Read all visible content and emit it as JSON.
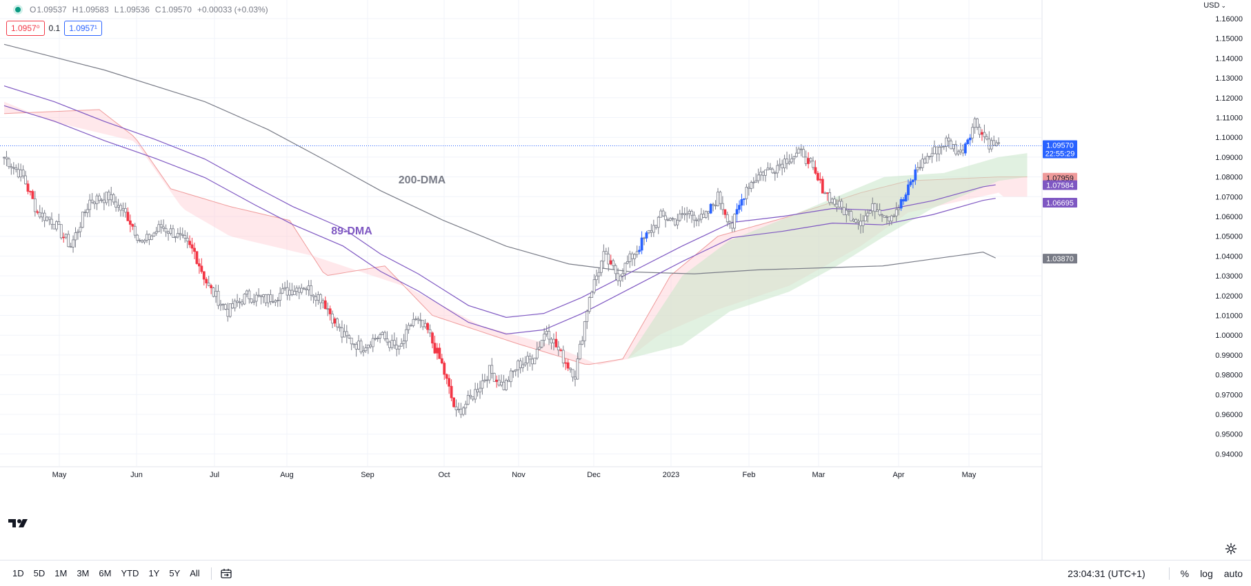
{
  "header": {
    "ohlc": {
      "o_label": "O",
      "o": "1.09537",
      "h_label": "H",
      "h": "1.09583",
      "l_label": "L",
      "l": "1.09536",
      "c_label": "C",
      "c": "1.09570",
      "change": "+0.00033 (+0.03%)"
    },
    "sell_price": "1.0957⁰",
    "spread": "0.1",
    "buy_price": "1.0957¹",
    "currency": "USD"
  },
  "colors": {
    "up": "#2962ff",
    "down": "#f23645",
    "neutral_candle": "#9598a1",
    "dma200": "#787b86",
    "dma89": "#7e57c2",
    "cloud_bear": "#ffcdd2",
    "cloud_bull": "#c8e6c9",
    "cloud_edge": "#ef9a9a",
    "price_line": "#2962ff"
  },
  "chart_data": {
    "type": "candlestick",
    "instrument_currency": "USD",
    "y_ticks": [
      "1.16000",
      "1.15000",
      "1.14000",
      "1.13000",
      "1.12000",
      "1.11000",
      "1.10000",
      "1.09000",
      "1.08000",
      "1.07000",
      "1.06000",
      "1.05000",
      "1.04000",
      "1.03000",
      "1.02000",
      "1.01000",
      "1.00000",
      "0.99000",
      "0.98000",
      "0.97000",
      "0.96000",
      "0.95000",
      "0.94000"
    ],
    "x_ticks": [
      "May",
      "Jun",
      "Jul",
      "Aug",
      "Sep",
      "Oct",
      "Nov",
      "Dec",
      "2023",
      "Feb",
      "Mar",
      "Apr",
      "May"
    ],
    "ylim": [
      0.935,
      1.162
    ],
    "annotations": [
      {
        "text": "200-DMA",
        "color": "#787b86"
      },
      {
        "text": "89-DMA",
        "color": "#7e57c2"
      }
    ],
    "price_labels": [
      {
        "text": "1.09570",
        "sub": "22:55:29",
        "bg": "#2962ff",
        "value": 1.0957
      },
      {
        "text": "1.07959",
        "bg": "#ef9a9a",
        "fg": "#131722",
        "value": 1.07959
      },
      {
        "text": "1.07584",
        "bg": "#7e57c2",
        "value": 1.07584
      },
      {
        "text": "1.06695",
        "bg": "#7e57c2",
        "value": 1.06695
      },
      {
        "text": "1.03870",
        "bg": "#787b86",
        "value": 1.0387
      }
    ],
    "series": [
      {
        "name": "200-DMA",
        "points": [
          [
            0,
            1.147
          ],
          [
            40,
            1.134
          ],
          [
            80,
            1.118
          ],
          [
            105,
            1.104
          ],
          [
            130,
            1.087
          ],
          [
            150,
            1.073
          ],
          [
            175,
            1.058
          ],
          [
            200,
            1.045
          ],
          [
            225,
            1.036
          ],
          [
            250,
            1.032
          ],
          [
            275,
            1.031
          ],
          [
            300,
            1.033
          ],
          [
            325,
            1.034
          ],
          [
            350,
            1.035
          ],
          [
            390,
            1.042
          ],
          [
            395,
            1.039
          ]
        ]
      },
      {
        "name": "89-DMA",
        "points": [
          [
            0,
            1.126
          ],
          [
            20,
            1.118
          ],
          [
            40,
            1.108
          ],
          [
            60,
            1.099
          ],
          [
            80,
            1.089
          ],
          [
            100,
            1.075
          ],
          [
            115,
            1.065
          ],
          [
            135,
            1.054
          ],
          [
            150,
            1.041
          ],
          [
            165,
            1.031
          ],
          [
            185,
            1.015
          ],
          [
            200,
            1.009
          ],
          [
            215,
            1.011
          ],
          [
            230,
            1.019
          ],
          [
            250,
            1.032
          ],
          [
            270,
            1.045
          ],
          [
            290,
            1.057
          ],
          [
            310,
            1.06
          ],
          [
            330,
            1.064
          ],
          [
            350,
            1.063
          ],
          [
            370,
            1.068
          ],
          [
            390,
            1.075
          ],
          [
            395,
            1.076
          ]
        ]
      }
    ]
  },
  "bottom_bar": {
    "periods": [
      "1D",
      "5D",
      "1M",
      "3M",
      "6M",
      "YTD",
      "1Y",
      "5Y",
      "All"
    ],
    "clock": "23:04:31 (UTC+1)",
    "percent": "%",
    "log": "log",
    "auto": "auto"
  }
}
